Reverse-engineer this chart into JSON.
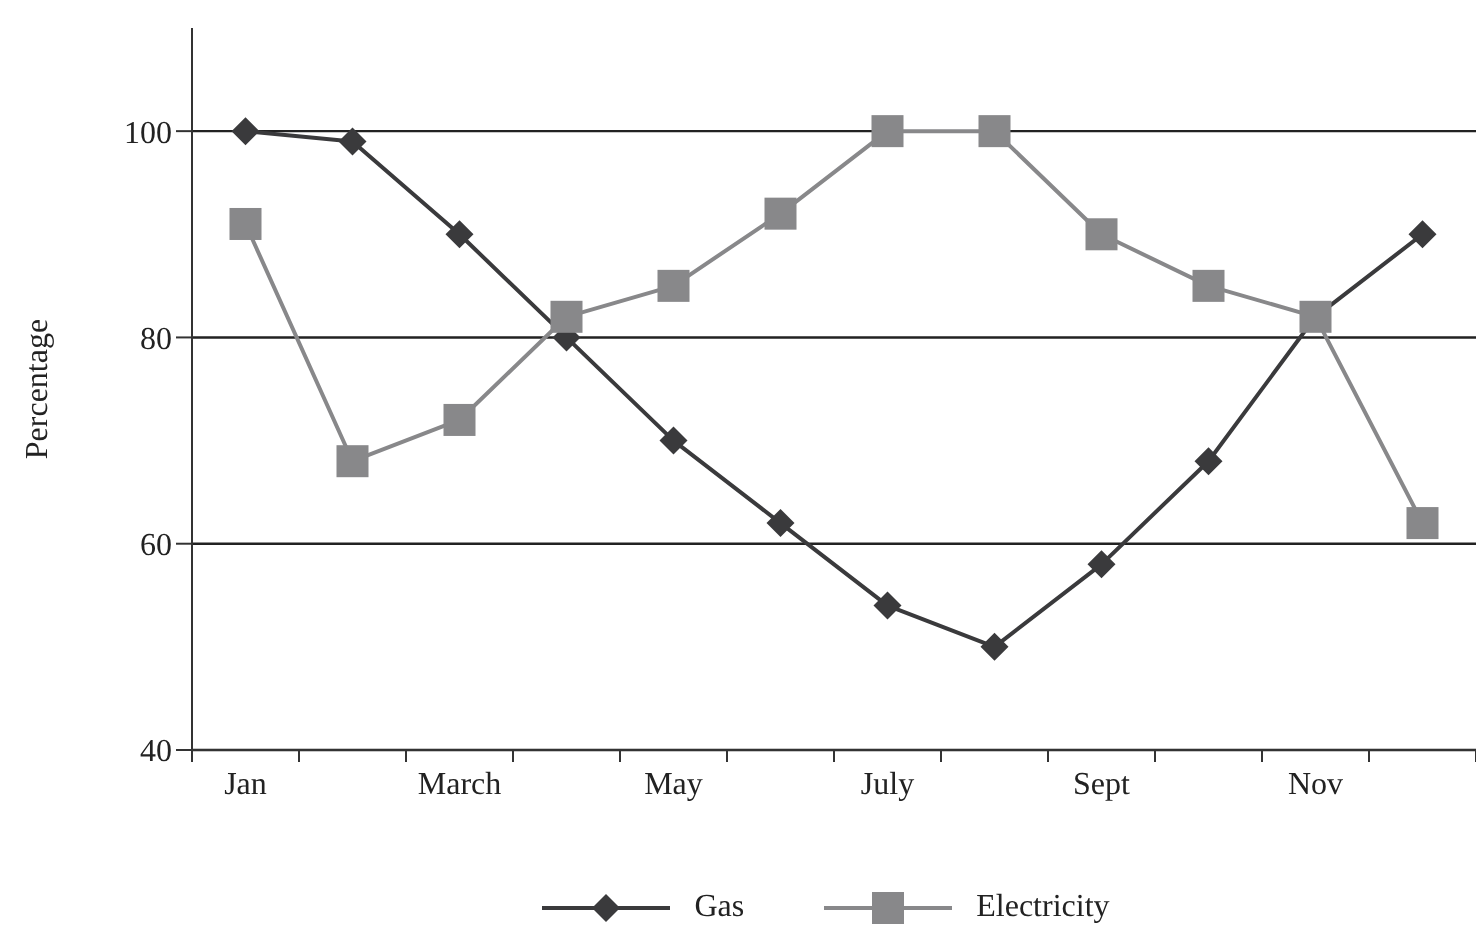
{
  "chart_data": {
    "type": "line",
    "ylabel": "Percentage",
    "categories": [
      "Jan",
      null,
      "March",
      null,
      "May",
      null,
      "July",
      null,
      "Sept",
      null,
      "Nov",
      null
    ],
    "series": [
      {
        "name": "Gas",
        "color": "#3a3a3c",
        "marker": "diamond",
        "values": [
          100,
          99,
          90,
          80,
          70,
          62,
          54,
          50,
          58,
          68,
          82,
          90
        ]
      },
      {
        "name": "Electricity",
        "color": "#88888a",
        "marker": "square",
        "values": [
          91,
          68,
          72,
          82,
          85,
          92,
          100,
          100,
          90,
          85,
          82,
          62
        ]
      }
    ],
    "ylim": [
      40,
      110
    ],
    "yticks": [
      40,
      60,
      80,
      100
    ],
    "grid": "y",
    "legend": "bottom",
    "line_style": "solid"
  }
}
